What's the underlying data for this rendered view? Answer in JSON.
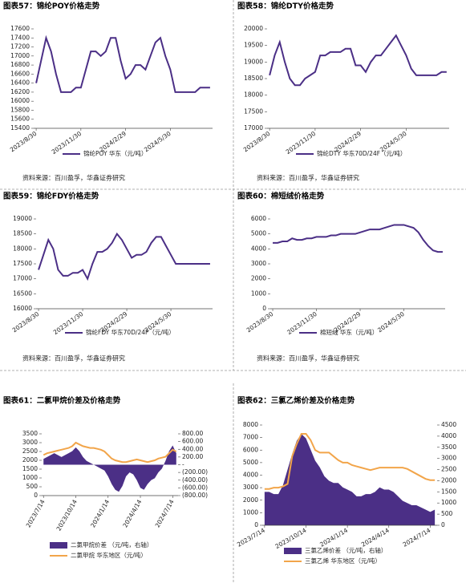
{
  "chart_data": [
    {
      "type": "line",
      "title": "图表57：锦纶POY价格走势",
      "source": "资料来源：百川盈孚，华鑫证券研究",
      "categories": [
        "2023/8/30",
        null,
        null,
        null,
        null,
        null,
        null,
        null,
        null,
        "2023/11/30",
        null,
        null,
        null,
        null,
        null,
        null,
        null,
        null,
        "2024/2/29",
        null,
        null,
        null,
        null,
        null,
        null,
        null,
        null,
        "2024/5/30",
        null,
        null,
        null,
        null,
        null,
        null,
        null,
        null
      ],
      "series": [
        {
          "name": "锦纶POY 华东（元/吨）",
          "color": "#4b2f86",
          "values": [
            16400,
            16900,
            17400,
            17100,
            16600,
            16200,
            16200,
            16200,
            16300,
            16300,
            16700,
            17100,
            17100,
            17000,
            17100,
            17400,
            17400,
            16900,
            16500,
            16600,
            16800,
            16800,
            16700,
            17000,
            17300,
            17400,
            17000,
            16700,
            16200,
            16200,
            16200,
            16200,
            16200,
            16300,
            16300,
            16300
          ]
        }
      ],
      "ylim": [
        15400,
        17600
      ],
      "yticks": [
        15400,
        15600,
        15800,
        16000,
        16200,
        16400,
        16600,
        16800,
        17000,
        17200,
        17400,
        17600
      ]
    },
    {
      "type": "line",
      "title": "图表58：锦纶DTY价格走势",
      "source": "资料来源：百川盈孚，华鑫证券研究",
      "categories": [
        "2023/8/30",
        null,
        null,
        null,
        null,
        null,
        null,
        null,
        null,
        "2023/11/30",
        null,
        null,
        null,
        null,
        null,
        null,
        null,
        null,
        "2024/2/29",
        null,
        null,
        null,
        null,
        null,
        null,
        null,
        null,
        "2024/5/30",
        null,
        null,
        null,
        null,
        null,
        null,
        null,
        null
      ],
      "series": [
        {
          "name": "锦纶DTY 华东70D/24F（元/吨）",
          "color": "#4b2f86",
          "values": [
            18600,
            19200,
            19600,
            19000,
            18500,
            18300,
            18300,
            18500,
            18600,
            18700,
            19200,
            19200,
            19300,
            19300,
            19300,
            19400,
            19400,
            18900,
            18900,
            18700,
            19000,
            19200,
            19200,
            19400,
            19600,
            19800,
            19500,
            19200,
            18800,
            18600,
            18600,
            18600,
            18600,
            18600,
            18700,
            18700
          ]
        }
      ],
      "ylim": [
        17000,
        20000
      ],
      "yticks": [
        17000,
        17500,
        18000,
        18500,
        19000,
        19500,
        20000
      ]
    },
    {
      "type": "line",
      "title": "图表59：锦纶FDY价格走势",
      "source": "资料来源：百川盈孚，华鑫证券研究",
      "categories": [
        "2023/8/30",
        null,
        null,
        null,
        null,
        null,
        null,
        null,
        null,
        "2023/11/30",
        null,
        null,
        null,
        null,
        null,
        null,
        null,
        null,
        "2024/2/29",
        null,
        null,
        null,
        null,
        null,
        null,
        null,
        null,
        "2024/5/30",
        null,
        null,
        null,
        null,
        null,
        null,
        null,
        null
      ],
      "series": [
        {
          "name": "锦纶FDY 华东70D/24F（元/吨）",
          "color": "#4b2f86",
          "values": [
            17300,
            17800,
            18300,
            18000,
            17300,
            17100,
            17100,
            17200,
            17200,
            17300,
            17000,
            17500,
            17900,
            17900,
            18000,
            18200,
            18500,
            18300,
            18000,
            17700,
            17800,
            17800,
            17900,
            18200,
            18400,
            18400,
            18100,
            17800,
            17500,
            17500,
            17500,
            17500,
            17500,
            17500,
            17500,
            17500
          ]
        }
      ],
      "ylim": [
        16000,
        19000
      ],
      "yticks": [
        16000,
        16500,
        17000,
        17500,
        18000,
        18500,
        19000
      ]
    },
    {
      "type": "line",
      "title": "图表60：棉短绒价格走势",
      "source": "资料来源：百川盈孚，华鑫证券研究",
      "categories": [
        "2023/8/30",
        null,
        null,
        null,
        null,
        null,
        null,
        null,
        null,
        "2023/11/30",
        null,
        null,
        null,
        null,
        null,
        null,
        null,
        null,
        "2024/2/29",
        null,
        null,
        null,
        null,
        null,
        null,
        null,
        null,
        "2024/5/30",
        null,
        null,
        null,
        null,
        null,
        null,
        null,
        null
      ],
      "series": [
        {
          "name": "棉短绒 华东（元/吨）",
          "color": "#4b2f86",
          "values": [
            4400,
            4400,
            4500,
            4500,
            4700,
            4600,
            4600,
            4700,
            4700,
            4800,
            4800,
            4800,
            4900,
            4900,
            5000,
            5000,
            5000,
            5000,
            5100,
            5200,
            5300,
            5300,
            5300,
            5400,
            5500,
            5600,
            5600,
            5600,
            5500,
            5400,
            5100,
            4600,
            4200,
            3900,
            3800,
            3800
          ]
        }
      ],
      "ylim": [
        0,
        6000
      ],
      "yticks": [
        0,
        1000,
        2000,
        3000,
        4000,
        5000,
        6000
      ]
    },
    {
      "type": "combo",
      "title": "图表61：二氯甲烷价差及价格走势",
      "categories": [
        "2023/7/14",
        null,
        null,
        null,
        null,
        null,
        null,
        null,
        null,
        "2023/10/14",
        null,
        null,
        null,
        null,
        null,
        null,
        null,
        null,
        "2024/1/14",
        null,
        null,
        null,
        null,
        null,
        null,
        null,
        null,
        "2024/4/14",
        null,
        null,
        null,
        null,
        null,
        null,
        null,
        null,
        "2024/7/14",
        null
      ],
      "series": [
        {
          "name": "二氯甲烷价差 （元/吨，右轴）",
          "type": "area",
          "axis": "y2",
          "color": "#4b2f86",
          "values": [
            150,
            200,
            250,
            300,
            250,
            200,
            250,
            300,
            350,
            450,
            350,
            200,
            100,
            50,
            0,
            -50,
            -100,
            -150,
            -300,
            -500,
            -650,
            -700,
            -550,
            -300,
            -200,
            -250,
            -400,
            -600,
            -650,
            -500,
            -400,
            -350,
            -200,
            -100,
            100,
            350,
            500,
            300
          ]
        },
        {
          "name": "二氯甲烷 华东地区（元/吨）",
          "type": "line",
          "color": "#f2a54a",
          "values": [
            2300,
            2400,
            2450,
            2500,
            2550,
            2600,
            2650,
            2700,
            2800,
            3000,
            2900,
            2800,
            2750,
            2700,
            2700,
            2650,
            2600,
            2500,
            2300,
            2100,
            2000,
            1950,
            1900,
            1900,
            1950,
            2000,
            2050,
            2000,
            1950,
            1900,
            1950,
            2000,
            2100,
            2150,
            2200,
            2400,
            2600,
            2500
          ]
        }
      ],
      "ylim": [
        0,
        3500
      ],
      "yticks": [
        0,
        500,
        1000,
        1500,
        2000,
        2500,
        3000,
        3500
      ],
      "y2lim": [
        -800,
        800
      ],
      "y2ticks": [
        {
          "value": -800,
          "label": "(800.00)"
        },
        {
          "value": -600,
          "label": "(600.00)"
        },
        {
          "value": -400,
          "label": "(400.00)"
        },
        {
          "value": -200,
          "label": "(200.00)"
        },
        {
          "value": 0,
          "label": "-"
        },
        {
          "value": 200,
          "label": "200.00"
        },
        {
          "value": 400,
          "label": "400.00"
        },
        {
          "value": 600,
          "label": "600.00"
        },
        {
          "value": 800,
          "label": "800.00"
        }
      ]
    },
    {
      "type": "combo",
      "title": "图表62：三氯乙烯价差及价格走势",
      "categories": [
        "2023/7/14",
        null,
        null,
        null,
        null,
        null,
        null,
        null,
        null,
        "2023/10/14",
        null,
        null,
        null,
        null,
        null,
        null,
        null,
        null,
        "2024/1/14",
        null,
        null,
        null,
        null,
        null,
        null,
        null,
        null,
        "2024/4/14",
        null,
        null,
        null,
        null,
        null,
        null,
        null,
        null,
        "2024/7/14",
        null
      ],
      "series": [
        {
          "name": "三氯乙烯价差 （元/吨，右轴）",
          "type": "area",
          "axis": "y2",
          "color": "#4b2f86",
          "values": [
            1500,
            1500,
            1400,
            1400,
            1800,
            2500,
            3200,
            3800,
            4100,
            3900,
            3400,
            2900,
            2600,
            2200,
            2000,
            1900,
            1900,
            1700,
            1600,
            1500,
            1300,
            1300,
            1400,
            1400,
            1500,
            1700,
            1600,
            1600,
            1500,
            1300,
            1100,
            1000,
            900,
            900,
            800,
            700,
            600,
            700
          ]
        },
        {
          "name": "三氯乙烯 华东地区（元/吨）",
          "type": "line",
          "color": "#f2a54a",
          "values": [
            2900,
            2900,
            3000,
            3000,
            3100,
            3300,
            5500,
            6500,
            7300,
            7300,
            6800,
            6000,
            5800,
            5800,
            5800,
            5500,
            5200,
            5000,
            5000,
            4800,
            4700,
            4600,
            4500,
            4400,
            4500,
            4600,
            4600,
            4600,
            4600,
            4600,
            4600,
            4500,
            4300,
            4100,
            3900,
            3700,
            3600,
            3600
          ]
        }
      ],
      "ylim": [
        0,
        8000
      ],
      "yticks": [
        0,
        1000,
        2000,
        3000,
        4000,
        5000,
        6000,
        7000,
        8000
      ],
      "y2lim": [
        0,
        4500
      ],
      "y2ticks": [
        0,
        500,
        1000,
        1500,
        2000,
        2500,
        3000,
        3500,
        4000,
        4500
      ]
    }
  ]
}
